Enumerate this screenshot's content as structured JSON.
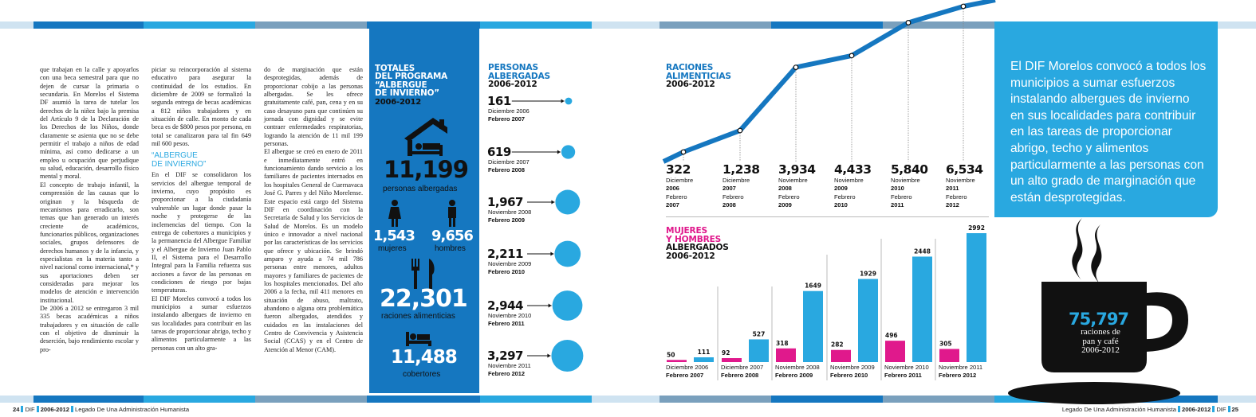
{
  "colors": {
    "blue_panel": "#1577c0",
    "accent_cyan": "#29a8e0",
    "magenta": "#e0198c",
    "dark": "#111111"
  },
  "left_page": {
    "col1": "que trabajan en la calle y apoyarlos con una beca semestral para que no dejen de cursar la primaria o secundaria. En Morelos el Sistema DF asumió la tarea de tutelar los derechos de la niñez bajo la premisa del Artículo 9 de la Declaración de los Derechos de los Niños, donde claramente se asienta que no se debe permitir el trabajo a niños de edad mínima, así como dedicarse a un empleo u ocupación que perjudique su salud, educación, desarrollo físico mental y moral.\n   El concepto de trabajo infantil, la comprensión de las causas que lo originan y la búsqueda de mecanismos para erradicarlo, son temas que han generado un interés creciente de académicos, funcionarios públicos, organizaciones sociales, grupos defensores de derechos humanos y de la infancia, y especialistas en la materia tanto a nivel nacional como internacional,* y sus aportaciones deben ser consideradas para mejorar los modelos de atención e intervención institucional.\n   De 2006 a 2012 se entregaron 3 mil 335 becas académicas a niños trabajadores y en situación de calle con el objetivo de disminuir la deserción, bajo rendimiento escolar y pro-",
    "col2a": "piciar su reincorporación al sistema educativo para asegurar la continuidad de los estudios. En diciembre de 2009 se formalizó la segunda entrega de becas académicas a 812 niños trabajadores y en situación de calle. En monto de cada beca es de $800 pesos por persona, en total se canalizaron para tal fin 649 mil 600 pesos.",
    "col2_subhead": "“Albergue\nde invierno”",
    "col2b": "   En el DIF se consolidaron los servicios del albergue temporal de invierno, cuyo propósito es proporcionar a la ciudadanía vulnerable un lugar donde pasar la noche y protegerse de las inclemencias del tiempo. Con la entrega de cobertores a municipios y la permanencia del Albergue Familiar y el Albergue de Invierno Juan Pablo II, el Sistema para el Desarrollo Integral para la Familia refuerza sus acciones a favor de las personas en condiciones de riesgo por bajas temperaturas.\n   El DIF Morelos convocó a todos los municipios a sumar esfuerzos instalando albergues de invierno en sus localidades para contribuir en las tareas de proporcionar abrigo, techo y alimentos particularmente a las personas con un alto gra-",
    "col3": "do de marginación que están desprotegidas, además de proporcionar cobijo a las personas albergadas. Se les ofrece gratuitamente café, pan, cena y en su caso desayuno para que continúen su jornada con dignidad y se evite contraer enfermedades respiratorias, logrando la atención de 11 mil 199 personas.\n   El albergue se creó en enero de 2011 e inmediatamente entró en funcionamiento dando servicio a los familiares de pacientes internados en los hospitales General de Cuernavaca José G. Parres y del Niño Morelense. Este espacio está cargo del Sistema DIF en coordinación con la Secretaría de Salud y los Servicios de Salud de Morelos. Es un modelo único e innovador a nivel nacional por las características de los servicios que ofrece y ubicación. Se brindó amparo y ayuda a 74 mil 786 personas entre menores, adultos mayores y familiares de pacientes de los hospitales mencionados. Del año 2006 a la fecha, mil 411 menores en situación de abuso, maltrato, abandono o alguna otra problemática fueron albergados, atendidos y cuidados en las instalaciones del Centro de Convivencia y Asistencia Social (CCAS) y en el Centro de Atención al Menor (CAM).",
    "footer": {
      "page": "24",
      "org": "DIF",
      "years": "2006-2012",
      "title": "Legado De Una Administración Humanista"
    }
  },
  "totales": {
    "title": [
      "TOTALES",
      "DEL PROGRAMA",
      "“ALBERGUE",
      "DE INVIERNO”"
    ],
    "years": "2006-2012",
    "personas_value": "11,199",
    "personas_label": "personas albergadas",
    "mujeres_value": "1,543",
    "mujeres_label": "mujeres",
    "hombres_value": "9,656",
    "hombres_label": "hombres",
    "raciones_value": "22,301",
    "raciones_label": "raciones alimenticias",
    "cobertores_value": "11,488",
    "cobertores_label": "cobertores"
  },
  "personas": {
    "title": [
      "PERSONAS",
      "ALBERGADAS"
    ],
    "years": "2006-2012",
    "items": [
      {
        "value": "161",
        "from": "Diciembre 2006",
        "to": "Febrero 2007",
        "num": 161
      },
      {
        "value": "619",
        "from": "Diciembre 2007",
        "to": "Febrero 2008",
        "num": 619
      },
      {
        "value": "1,967",
        "from": "Noviembre 2008",
        "to": "Febrero 2009",
        "num": 1967
      },
      {
        "value": "2,211",
        "from": "Noviembre 2009",
        "to": "Febrero 2010",
        "num": 2211
      },
      {
        "value": "2,944",
        "from": "Noviembre 2010",
        "to": "Febrero 2011",
        "num": 2944
      },
      {
        "value": "3,297",
        "from": "Noviembre 2011",
        "to": "Febrero 2012",
        "num": 3297
      }
    ]
  },
  "raciones": {
    "title": [
      "RACIONES",
      "ALIMENTICIAS"
    ],
    "years": "2006-2012"
  },
  "mujeres_hombres": {
    "title_colored": [
      "MUJERES",
      "Y HOMBRES"
    ],
    "title_dark": "ALBERGADOS",
    "years": "2006-2012"
  },
  "quote": "El DIF Morelos convocó a todos los municipios a sumar esfuerzos instalando albergues de invierno en sus localidades para contribuir en las tareas de proporcionar abrigo, techo y alimentos particularmente a las personas con un alto grado de marginación que están desprotegidas.",
  "cup": {
    "value": "75,797",
    "lines": [
      "raciones de",
      "pan y café",
      "2006-2012"
    ]
  },
  "right_footer": {
    "title": "Legado De Una Administración Humanista",
    "years": "2006-2012",
    "org": "DIF",
    "page": "25"
  },
  "chart_data": [
    {
      "type": "line",
      "title": "RACIONES ALIMENTICIAS 2006-2012",
      "categories": [
        "Diciembre 2006 Febrero 2007",
        "Diciembre 2007 Febrero 2008",
        "Noviembre 2008 Febrero 2009",
        "Noviembre 2009 Febrero 2010",
        "Noviembre 2010 Febrero 2011",
        "Noviembre 2011 Febrero 2012"
      ],
      "labels": [
        "322",
        "1,238",
        "3,934",
        "4,433",
        "5,840",
        "6,534"
      ],
      "values": [
        322,
        1238,
        3934,
        4433,
        5840,
        6534
      ],
      "periods": [
        [
          "Diciembre",
          "2006",
          "Febrero",
          "2007"
        ],
        [
          "Diciembre",
          "2007",
          "Febrero",
          "2008"
        ],
        [
          "Noviembre",
          "2008",
          "Febrero",
          "2009"
        ],
        [
          "Noviembre",
          "2009",
          "Febrero",
          "2010"
        ],
        [
          "Noviembre",
          "2010",
          "Febrero",
          "2011"
        ],
        [
          "Noviembre",
          "2011",
          "Febrero",
          "2012"
        ]
      ]
    },
    {
      "type": "bar",
      "title": "MUJERES Y HOMBRES ALBERGADOS 2006-2012",
      "categories": [
        "Diciembre 2006 Febrero 2007",
        "Diciembre 2007 Febrero 2008",
        "Noviembre 2008 Febrero 2009",
        "Noviembre 2009 Febrero 2010",
        "Noviembre 2010 Febrero 2011",
        "Noviembre 2011 Febrero 2012"
      ],
      "periods": [
        [
          "Diciembre 2006",
          "Febrero 2007"
        ],
        [
          "Diciembre 2007",
          "Febrero 2008"
        ],
        [
          "Noviembre 2008",
          "Febrero 2009"
        ],
        [
          "Noviembre 2009",
          "Febrero 2010"
        ],
        [
          "Noviembre 2010",
          "Febrero 2011"
        ],
        [
          "Noviembre 2011",
          "Febrero 2012"
        ]
      ],
      "series": [
        {
          "name": "Mujeres",
          "values": [
            50,
            92,
            318,
            282,
            496,
            305
          ],
          "color": "#e0198c"
        },
        {
          "name": "Hombres",
          "values": [
            111,
            527,
            1649,
            1929,
            2448,
            2992
          ],
          "color": "#29a8e0"
        }
      ]
    }
  ]
}
